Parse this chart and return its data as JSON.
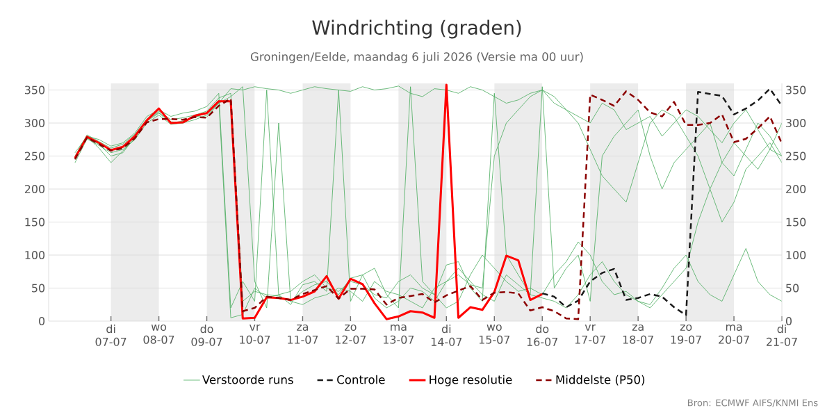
{
  "chart_data": {
    "type": "line",
    "title": "Windrichting (graden)",
    "subtitle": "Groningen/Eelde, maandag  6 juli 2026 (Versie ma 00 uur)",
    "annotations": [
      "Bron: ECMWF AIFS/KNMI Ens"
    ],
    "x": [
      "2026-07-06T06:00",
      "2026-07-06T12:00",
      "2026-07-06T18:00",
      "2026-07-07T00:00",
      "2026-07-07T06:00",
      "2026-07-07T12:00",
      "2026-07-07T18:00",
      "2026-07-08T00:00",
      "2026-07-08T06:00",
      "2026-07-08T12:00",
      "2026-07-08T18:00",
      "2026-07-09T00:00",
      "2026-07-09T06:00",
      "2026-07-09T12:00",
      "2026-07-09T18:00",
      "2026-07-10T00:00",
      "2026-07-10T06:00",
      "2026-07-10T12:00",
      "2026-07-10T18:00",
      "2026-07-11T00:00",
      "2026-07-11T06:00",
      "2026-07-11T12:00",
      "2026-07-11T18:00",
      "2026-07-12T00:00",
      "2026-07-12T06:00",
      "2026-07-12T12:00",
      "2026-07-12T18:00",
      "2026-07-13T00:00",
      "2026-07-13T06:00",
      "2026-07-13T12:00",
      "2026-07-13T18:00",
      "2026-07-14T00:00",
      "2026-07-14T06:00",
      "2026-07-14T12:00",
      "2026-07-14T18:00",
      "2026-07-15T00:00",
      "2026-07-15T06:00",
      "2026-07-15T12:00",
      "2026-07-15T18:00",
      "2026-07-16T00:00",
      "2026-07-16T06:00",
      "2026-07-16T12:00",
      "2026-07-16T18:00",
      "2026-07-17T00:00",
      "2026-07-17T06:00",
      "2026-07-17T12:00",
      "2026-07-17T18:00",
      "2026-07-18T00:00",
      "2026-07-18T06:00",
      "2026-07-18T12:00",
      "2026-07-18T18:00",
      "2026-07-19T00:00",
      "2026-07-19T06:00",
      "2026-07-19T12:00",
      "2026-07-19T18:00",
      "2026-07-20T00:00",
      "2026-07-20T06:00",
      "2026-07-20T12:00",
      "2026-07-20T18:00",
      "2026-07-21T00:00"
    ],
    "xlim": [
      "2026-07-05T16:48",
      "2026-07-21T00:00"
    ],
    "xticks": [
      {
        "value": "2026-07-07",
        "label": "di 07-07"
      },
      {
        "value": "2026-07-08",
        "label": "wo 08-07"
      },
      {
        "value": "2026-07-09",
        "label": "do 09-07"
      },
      {
        "value": "2026-07-10",
        "label": "vr 10-07"
      },
      {
        "value": "2026-07-11",
        "label": "za 11-07"
      },
      {
        "value": "2026-07-12",
        "label": "zo 12-07"
      },
      {
        "value": "2026-07-13",
        "label": "ma 13-07"
      },
      {
        "value": "2026-07-14",
        "label": "di 14-07"
      },
      {
        "value": "2026-07-15",
        "label": "wo 15-07"
      },
      {
        "value": "2026-07-16",
        "label": "do 16-07"
      },
      {
        "value": "2026-07-17",
        "label": "vr 17-07"
      },
      {
        "value": "2026-07-18",
        "label": "za 18-07"
      },
      {
        "value": "2026-07-19",
        "label": "zo 19-07"
      },
      {
        "value": "2026-07-20",
        "label": "ma 20-07"
      },
      {
        "value": "2026-07-21",
        "label": "di 21-07"
      }
    ],
    "ylim": [
      0,
      360
    ],
    "yticks": [
      0,
      50,
      100,
      150,
      200,
      250,
      300,
      350
    ],
    "y2lim": [
      0,
      360
    ],
    "y2ticks": [
      0,
      50,
      100,
      150,
      200,
      250,
      300,
      350
    ],
    "grid": "y",
    "legend": "bottom",
    "bands": [
      {
        "axis": "x",
        "from": "2026-07-07",
        "to": "2026-07-08",
        "color": "#ececec"
      },
      {
        "axis": "x",
        "from": "2026-07-09",
        "to": "2026-07-10",
        "color": "#ececec"
      },
      {
        "axis": "x",
        "from": "2026-07-11",
        "to": "2026-07-12",
        "color": "#ececec"
      },
      {
        "axis": "x",
        "from": "2026-07-13",
        "to": "2026-07-14",
        "color": "#ececec"
      },
      {
        "axis": "x",
        "from": "2026-07-15",
        "to": "2026-07-16",
        "color": "#ececec"
      },
      {
        "axis": "x",
        "from": "2026-07-17",
        "to": "2026-07-18",
        "color": "#ececec"
      },
      {
        "axis": "x",
        "from": "2026-07-19",
        "to": "2026-07-20",
        "color": "#ececec"
      }
    ],
    "series": [
      {
        "name": "Verstoorde runs",
        "color": "#4fae62",
        "line_style": "solid",
        "values": [
          250,
          282,
          272,
          262,
          268,
          283,
          306,
          318,
          305,
          308,
          312,
          318,
          338,
          345,
          30,
          45,
          40,
          38,
          30,
          45,
          55,
          60,
          40,
          65,
          70,
          35,
          20,
          30,
          50,
          45,
          30,
          60,
          80,
          60,
          40,
          30,
          70,
          55,
          40,
          35,
          30,
          20,
          40,
          70,
          90,
          60,
          40,
          30,
          25,
          50,
          80,
          100,
          60,
          40,
          30,
          70,
          110,
          60,
          40,
          30
        ]
      },
      {
        "color": "#4fae62",
        "line_style": "solid",
        "values": [
          240,
          276,
          266,
          255,
          260,
          275,
          300,
          312,
          298,
          300,
          305,
          312,
          330,
          352,
          350,
          355,
          352,
          350,
          345,
          350,
          355,
          352,
          350,
          348,
          355,
          350,
          352,
          356,
          345,
          340,
          352,
          350,
          345,
          355,
          350,
          340,
          330,
          335,
          345,
          350,
          340,
          320,
          310,
          300,
          330,
          320,
          290,
          300,
          310,
          280,
          300,
          320,
          310,
          290,
          270,
          300,
          320,
          290,
          260,
          250
        ]
      },
      {
        "color": "#4fae62",
        "line_style": "solid",
        "values": [
          255,
          280,
          275,
          265,
          270,
          285,
          310,
          320,
          310,
          315,
          318,
          325,
          345,
          20,
          60,
          30,
          350,
          40,
          25,
          55,
          60,
          45,
          350,
          30,
          70,
          80,
          40,
          20,
          355,
          60,
          40,
          85,
          90,
          50,
          30,
          345,
          100,
          70,
          40,
          355,
          50,
          80,
          100,
          30,
          250,
          280,
          300,
          320,
          250,
          200,
          240,
          260,
          280,
          300,
          240,
          220,
          260,
          300,
          280,
          250
        ]
      },
      {
        "color": "#4fae62",
        "line_style": "solid",
        "values": [
          245,
          277,
          268,
          250,
          255,
          279,
          303,
          315,
          300,
          303,
          309,
          315,
          335,
          5,
          10,
          50,
          35,
          40,
          45,
          60,
          70,
          50,
          45,
          60,
          55,
          40,
          35,
          60,
          70,
          50,
          40,
          20,
          30,
          70,
          100,
          80,
          60,
          45,
          50,
          40,
          70,
          90,
          120,
          100,
          60,
          40,
          45,
          30,
          20,
          40,
          60,
          80,
          150,
          200,
          240,
          270,
          250,
          230,
          260,
          300
        ]
      },
      {
        "color": "#4fae62",
        "line_style": "solid",
        "values": [
          248,
          279,
          262,
          240,
          258,
          276,
          305,
          316,
          302,
          300,
          310,
          309,
          330,
          340,
          355,
          60,
          20,
          300,
          30,
          25,
          35,
          40,
          50,
          45,
          30,
          60,
          45,
          40,
          30,
          20,
          50,
          60,
          70,
          55,
          50,
          250,
          300,
          320,
          340,
          350,
          330,
          320,
          300,
          260,
          220,
          200,
          180,
          240,
          300,
          320,
          310,
          280,
          250,
          200,
          150,
          180,
          230,
          250,
          270,
          240
        ]
      },
      {
        "name": "Controle",
        "color": "#1a1a1a",
        "line_style": "dashed",
        "x": [
          "2026-07-16T00:00",
          "2026-07-16T06:00",
          "2026-07-16T12:00",
          "2026-07-16T18:00",
          "2026-07-17T00:00",
          "2026-07-17T06:00",
          "2026-07-17T12:00",
          "2026-07-17T18:00",
          "2026-07-18T00:00",
          "2026-07-18T06:00",
          "2026-07-18T12:00",
          "2026-07-18T18:00",
          "2026-07-19T00:00",
          "2026-07-19T06:00",
          "2026-07-19T12:00",
          "2026-07-19T18:00",
          "2026-07-20T00:00",
          "2026-07-20T06:00",
          "2026-07-20T12:00",
          "2026-07-20T18:00",
          "2026-07-21T00:00"
        ],
        "values": [
          42,
          37,
          21,
          31,
          60,
          73,
          79,
          32,
          35,
          41,
          37,
          21,
          9,
          347,
          344,
          341,
          313,
          322,
          334,
          352,
          326
        ]
      },
      {
        "name": "Hoge resolutie",
        "color": "#ff0000",
        "line_style": "solid",
        "x": [
          "2026-07-06T06:00",
          "2026-07-06T12:00",
          "2026-07-06T18:00",
          "2026-07-07T00:00",
          "2026-07-07T06:00",
          "2026-07-07T12:00",
          "2026-07-07T18:00",
          "2026-07-08T00:00",
          "2026-07-08T06:00",
          "2026-07-08T12:00",
          "2026-07-08T18:00",
          "2026-07-09T00:00",
          "2026-07-09T06:00",
          "2026-07-09T12:00",
          "2026-07-09T18:00",
          "2026-07-10T00:00",
          "2026-07-10T06:00",
          "2026-07-10T12:00",
          "2026-07-10T18:00",
          "2026-07-11T00:00",
          "2026-07-11T06:00",
          "2026-07-11T12:00",
          "2026-07-11T18:00",
          "2026-07-12T00:00",
          "2026-07-12T06:00",
          "2026-07-12T12:00",
          "2026-07-12T18:00",
          "2026-07-13T00:00",
          "2026-07-13T06:00",
          "2026-07-13T12:00",
          "2026-07-13T18:00",
          "2026-07-14T00:00",
          "2026-07-14T06:00",
          "2026-07-14T12:00",
          "2026-07-14T18:00",
          "2026-07-15T00:00",
          "2026-07-15T06:00",
          "2026-07-15T12:00",
          "2026-07-15T18:00",
          "2026-07-16T00:00"
        ],
        "values": [
          247,
          279,
          270,
          259,
          264,
          280,
          304,
          322,
          300,
          301,
          311,
          315,
          333,
          333,
          4,
          5,
          36,
          35,
          32,
          37,
          45,
          68,
          34,
          64,
          56,
          27,
          3,
          7,
          15,
          13,
          5,
          358,
          5,
          21,
          17,
          44,
          99,
          92,
          32,
          41
        ]
      },
      {
        "name": "Middelste (P50)",
        "color": "#8b0000",
        "line_style": "dashed",
        "values": [
          245,
          278,
          268,
          258,
          262,
          277,
          301,
          306,
          306,
          305,
          309,
          308,
          326,
          337,
          15,
          20,
          37,
          35,
          32,
          41,
          47,
          53,
          34,
          49,
          49,
          48,
          25,
          35,
          38,
          41,
          28,
          39,
          46,
          53,
          32,
          43,
          44,
          42,
          16,
          21,
          15,
          4,
          3,
          343,
          335,
          326,
          348,
          335,
          316,
          310,
          332,
          297,
          297,
          300,
          313,
          271,
          276,
          292,
          310,
          269
        ]
      }
    ]
  }
}
